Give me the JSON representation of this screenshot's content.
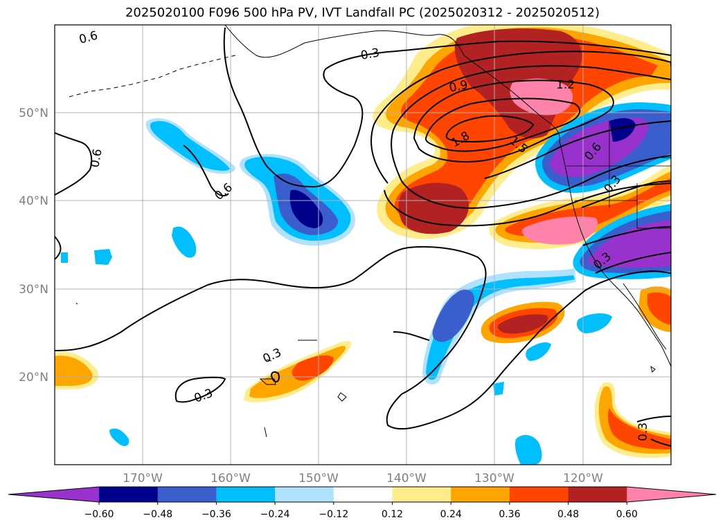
{
  "title": "2025020100 F096 500 hPa PV, IVT Landfall PC (2025020312 - 2025020512)",
  "map": {
    "lat_labels": [
      "50°N",
      "40°N",
      "30°N",
      "20°N"
    ],
    "lon_labels": [
      "170°W",
      "160°W",
      "150°W",
      "140°W",
      "130°W",
      "120°W"
    ],
    "contour_labels": [
      "0.6",
      "0.3",
      "0.9",
      "1.2",
      "1.5",
      "1.8",
      "0.6",
      "0.6",
      "0.6",
      "0.3",
      "0.3",
      "0.3",
      "0.3",
      "0.3"
    ]
  },
  "colorbar": {
    "tick_labels": [
      "−0.60",
      "−0.48",
      "−0.36",
      "−0.24",
      "−0.12",
      "0.12",
      "0.24",
      "0.36",
      "0.48",
      "0.60"
    ],
    "colors": [
      "#9932cc",
      "#00008b",
      "#3a5fcd",
      "#00bfff",
      "#b0e2ff",
      "#ffffff",
      "#ffec8b",
      "#ffa500",
      "#ff4500",
      "#b22222",
      "#ff82ab"
    ]
  }
}
